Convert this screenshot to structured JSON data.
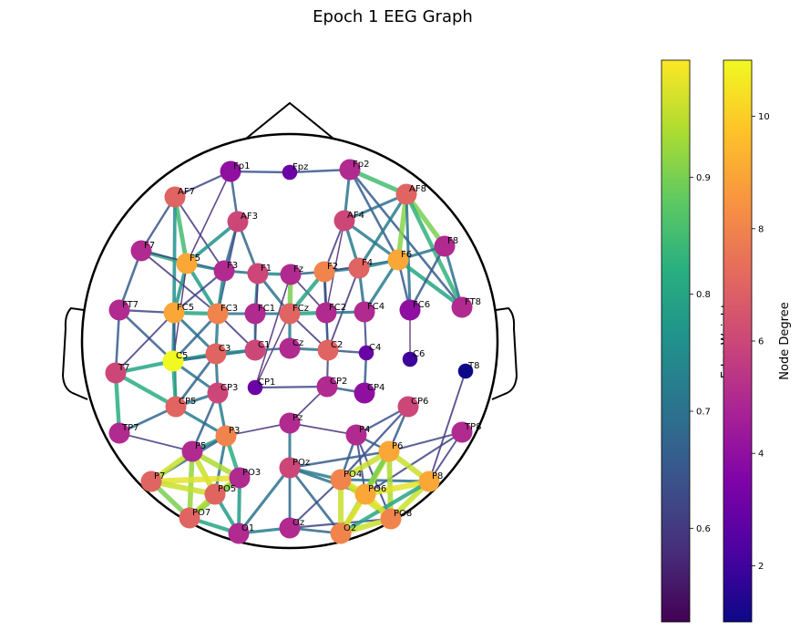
{
  "title": "Epoch 1 EEG Graph",
  "colorbars": {
    "edge": {
      "label": "Edge Weight",
      "colormap": "viridis",
      "range": [
        0.52,
        1.0
      ],
      "ticks": [
        "0.6",
        "0.7",
        "0.8",
        "0.9"
      ]
    },
    "node": {
      "label": "Node Degree",
      "colormap": "plasma",
      "range": [
        1,
        11
      ],
      "ticks": [
        "2",
        "4",
        "6",
        "8",
        "10"
      ]
    }
  },
  "nodes": [
    {
      "name": "Fp1",
      "degree": 4
    },
    {
      "name": "Fpz",
      "degree": 3
    },
    {
      "name": "Fp2",
      "degree": 5
    },
    {
      "name": "AF7",
      "degree": 7
    },
    {
      "name": "AF3",
      "degree": 6
    },
    {
      "name": "AF4",
      "degree": 6
    },
    {
      "name": "AF8",
      "degree": 7
    },
    {
      "name": "F7",
      "degree": 5
    },
    {
      "name": "F5",
      "degree": 9
    },
    {
      "name": "F3",
      "degree": 5
    },
    {
      "name": "F1",
      "degree": 6
    },
    {
      "name": "Fz",
      "degree": 5
    },
    {
      "name": "F2",
      "degree": 8
    },
    {
      "name": "F4",
      "degree": 7
    },
    {
      "name": "F6",
      "degree": 9
    },
    {
      "name": "F8",
      "degree": 5
    },
    {
      "name": "FT7",
      "degree": 5
    },
    {
      "name": "FC5",
      "degree": 9
    },
    {
      "name": "FC3",
      "degree": 8
    },
    {
      "name": "FC1",
      "degree": 5
    },
    {
      "name": "FCz",
      "degree": 7
    },
    {
      "name": "FC2",
      "degree": 5
    },
    {
      "name": "FC4",
      "degree": 5
    },
    {
      "name": "FC6",
      "degree": 4
    },
    {
      "name": "FT8",
      "degree": 5
    },
    {
      "name": "T7",
      "degree": 6
    },
    {
      "name": "C5",
      "degree": 11
    },
    {
      "name": "C3",
      "degree": 7
    },
    {
      "name": "C1",
      "degree": 6
    },
    {
      "name": "Cz",
      "degree": 5
    },
    {
      "name": "C2",
      "degree": 7
    },
    {
      "name": "C4",
      "degree": 3
    },
    {
      "name": "C6",
      "degree": 2
    },
    {
      "name": "T8",
      "degree": 1
    },
    {
      "name": "CP1",
      "degree": 3
    },
    {
      "name": "CP2",
      "degree": 5
    },
    {
      "name": "CP4",
      "degree": 4
    },
    {
      "name": "CP5",
      "degree": 7
    },
    {
      "name": "CP3",
      "degree": 6
    },
    {
      "name": "CP6",
      "degree": 6
    },
    {
      "name": "TP7",
      "degree": 5
    },
    {
      "name": "Pz",
      "degree": 5
    },
    {
      "name": "P4",
      "degree": 5
    },
    {
      "name": "TP8",
      "degree": 5
    },
    {
      "name": "P3",
      "degree": 8
    },
    {
      "name": "P6",
      "degree": 9
    },
    {
      "name": "P5",
      "degree": 5
    },
    {
      "name": "POz",
      "degree": 6
    },
    {
      "name": "PO3",
      "degree": 5
    },
    {
      "name": "PO4",
      "degree": 8
    },
    {
      "name": "P7",
      "degree": 7
    },
    {
      "name": "P8",
      "degree": 9
    },
    {
      "name": "PO5",
      "degree": 7
    },
    {
      "name": "PO6",
      "degree": 9
    },
    {
      "name": "PO7",
      "degree": 7
    },
    {
      "name": "PO8",
      "degree": 8
    },
    {
      "name": "Oz",
      "degree": 5
    },
    {
      "name": "O1",
      "degree": 5
    },
    {
      "name": "O2",
      "degree": 8
    }
  ],
  "edges": [
    [
      "Fp1",
      "Fpz",
      0.64
    ],
    [
      "Fpz",
      "Fp2",
      0.65
    ],
    [
      "Fp1",
      "AF7",
      0.62
    ],
    [
      "Fp1",
      "AF3",
      0.66
    ],
    [
      "Fp1",
      "F5",
      0.57
    ],
    [
      "Fp2",
      "AF4",
      0.7
    ],
    [
      "Fp2",
      "AF8",
      0.85
    ],
    [
      "Fp2",
      "F6",
      0.66
    ],
    [
      "Fp2",
      "FT8",
      0.66
    ],
    [
      "AF7",
      "F7",
      0.64
    ],
    [
      "AF7",
      "F5",
      0.85
    ],
    [
      "AF7",
      "FC5",
      0.76
    ],
    [
      "AF7",
      "F3",
      0.6
    ],
    [
      "AF3",
      "F5",
      0.76
    ],
    [
      "AF3",
      "F3",
      0.68
    ],
    [
      "AF3",
      "F1",
      0.68
    ],
    [
      "AF3",
      "FC3",
      0.63
    ],
    [
      "AF4",
      "F4",
      0.72
    ],
    [
      "AF4",
      "F6",
      0.72
    ],
    [
      "AF4",
      "AF8",
      0.7
    ],
    [
      "AF4",
      "FC2",
      0.56
    ],
    [
      "AF4",
      "F2",
      0.6
    ],
    [
      "AF8",
      "F6",
      0.91
    ],
    [
      "AF8",
      "F8",
      0.9
    ],
    [
      "AF8",
      "FT8",
      0.83
    ],
    [
      "AF8",
      "FC6",
      0.7
    ],
    [
      "AF8",
      "F4",
      0.72
    ],
    [
      "F7",
      "F5",
      0.82
    ],
    [
      "F7",
      "FT7",
      0.66
    ],
    [
      "F7",
      "FC3",
      0.6
    ],
    [
      "F7",
      "F3",
      0.6
    ],
    [
      "F5",
      "FC5",
      0.77
    ],
    [
      "F5",
      "FC3",
      0.78
    ],
    [
      "F5",
      "F3",
      0.72
    ],
    [
      "F5",
      "C5",
      0.56
    ],
    [
      "F3",
      "F1",
      0.7
    ],
    [
      "F3",
      "FC3",
      0.74
    ],
    [
      "F3",
      "FC5",
      0.62
    ],
    [
      "F1",
      "FC1",
      0.72
    ],
    [
      "F1",
      "Fz",
      0.74
    ],
    [
      "F1",
      "FCz",
      0.7
    ],
    [
      "F1",
      "C1",
      0.58
    ],
    [
      "Fz",
      "FCz",
      0.9
    ],
    [
      "Fz",
      "FC2",
      0.58
    ],
    [
      "Fz",
      "F2",
      0.68
    ],
    [
      "Fz",
      "CP1",
      0.57
    ],
    [
      "F2",
      "FCz",
      0.8
    ],
    [
      "F2",
      "F4",
      0.74
    ],
    [
      "F2",
      "FC2",
      0.7
    ],
    [
      "F2",
      "F6",
      0.6
    ],
    [
      "F2",
      "C2",
      0.62
    ],
    [
      "F4",
      "F6",
      0.74
    ],
    [
      "F4",
      "FC4",
      0.7
    ],
    [
      "F4",
      "C2",
      0.6
    ],
    [
      "F6",
      "F8",
      0.7
    ],
    [
      "F6",
      "FT8",
      0.8
    ],
    [
      "F6",
      "FC6",
      0.66
    ],
    [
      "F6",
      "FC4",
      0.72
    ],
    [
      "F8",
      "FT8",
      0.7
    ],
    [
      "F8",
      "FC6",
      0.66
    ],
    [
      "FT7",
      "FC5",
      0.62
    ],
    [
      "FT7",
      "T7",
      0.66
    ],
    [
      "FT7",
      "C5",
      0.66
    ],
    [
      "FC5",
      "FC3",
      0.8
    ],
    [
      "FC5",
      "C5",
      0.76
    ],
    [
      "FC5",
      "C3",
      0.7
    ],
    [
      "FC5",
      "CP5",
      0.64
    ],
    [
      "FC5",
      "T7",
      0.6
    ],
    [
      "FC3",
      "C3",
      0.72
    ],
    [
      "FC3",
      "FC1",
      0.7
    ],
    [
      "FC3",
      "C5",
      0.68
    ],
    [
      "FC3",
      "C1",
      0.6
    ],
    [
      "FC1",
      "FCz",
      0.7
    ],
    [
      "FC1",
      "C1",
      0.66
    ],
    [
      "FCz",
      "FC2",
      0.8
    ],
    [
      "FCz",
      "Cz",
      0.72
    ],
    [
      "FCz",
      "C2",
      0.6
    ],
    [
      "FCz",
      "CP1",
      0.56
    ],
    [
      "FC2",
      "FC4",
      0.7
    ],
    [
      "FC2",
      "C2",
      0.66
    ],
    [
      "FC4",
      "C4",
      0.62
    ],
    [
      "FC6",
      "C6",
      0.55
    ],
    [
      "T7",
      "C5",
      0.8
    ],
    [
      "T7",
      "CP5",
      0.82
    ],
    [
      "T7",
      "TP7",
      0.82
    ],
    [
      "C5",
      "C3",
      0.78
    ],
    [
      "C5",
      "CP5",
      0.8
    ],
    [
      "C5",
      "CP3",
      0.7
    ],
    [
      "C5",
      "C1",
      0.7
    ],
    [
      "C3",
      "C1",
      0.74
    ],
    [
      "C3",
      "CP3",
      0.7
    ],
    [
      "C3",
      "CP5",
      0.68
    ],
    [
      "C1",
      "Cz",
      0.66
    ],
    [
      "Cz",
      "C2",
      0.7
    ],
    [
      "C2",
      "C4",
      0.64
    ],
    [
      "C2",
      "CP2",
      0.62
    ],
    [
      "CP1",
      "CP2",
      0.62
    ],
    [
      "CP2",
      "CP4",
      0.66
    ],
    [
      "CP2",
      "Pz",
      0.58
    ],
    [
      "C4",
      "CP4",
      0.66
    ],
    [
      "CP5",
      "CP3",
      0.7
    ],
    [
      "CP5",
      "P3",
      0.72
    ],
    [
      "CP5",
      "TP7",
      0.68
    ],
    [
      "CP3",
      "P3",
      0.72
    ],
    [
      "CP3",
      "P5",
      0.66
    ],
    [
      "TP7",
      "P5",
      0.6
    ],
    [
      "P3",
      "Pz",
      0.58
    ],
    [
      "P3",
      "P5",
      0.76
    ],
    [
      "P3",
      "PO3",
      0.82
    ],
    [
      "P3",
      "P7",
      0.68
    ],
    [
      "P3",
      "PO5",
      0.7
    ],
    [
      "Pz",
      "P4",
      0.58
    ],
    [
      "Pz",
      "POz",
      0.7
    ],
    [
      "CP6",
      "P4",
      0.64
    ],
    [
      "CP6",
      "P6",
      0.66
    ],
    [
      "CP6",
      "PO4",
      0.64
    ],
    [
      "TP8",
      "P6",
      0.62
    ],
    [
      "TP8",
      "P8",
      0.6
    ],
    [
      "TP8",
      "PO6",
      0.62
    ],
    [
      "T8",
      "P8",
      0.6
    ],
    [
      "P4",
      "P6",
      0.66
    ],
    [
      "P4",
      "PO4",
      0.66
    ],
    [
      "P4",
      "PO6",
      0.62
    ],
    [
      "P4",
      "PO8",
      0.62
    ],
    [
      "P5",
      "P7",
      0.96
    ],
    [
      "P5",
      "PO5",
      0.96
    ],
    [
      "P5",
      "PO3",
      0.94
    ],
    [
      "P5",
      "PO7",
      0.92
    ],
    [
      "P7",
      "PO3",
      0.98
    ],
    [
      "P7",
      "PO5",
      0.96
    ],
    [
      "P7",
      "PO7",
      0.9
    ],
    [
      "PO3",
      "PO5",
      0.96
    ],
    [
      "PO3",
      "PO7",
      0.9
    ],
    [
      "PO3",
      "O1",
      0.78
    ],
    [
      "PO5",
      "PO7",
      0.94
    ],
    [
      "PO5",
      "O1",
      0.78
    ],
    [
      "PO7",
      "O1",
      0.8
    ],
    [
      "O1",
      "Oz",
      0.72
    ],
    [
      "O1",
      "POz",
      0.7
    ],
    [
      "POz",
      "PO4",
      0.72
    ],
    [
      "POz",
      "PO6",
      0.7
    ],
    [
      "POz",
      "O2",
      0.68
    ],
    [
      "POz",
      "Oz",
      0.68
    ],
    [
      "POz",
      "P6",
      0.66
    ],
    [
      "Oz",
      "O2",
      0.68
    ],
    [
      "Oz",
      "PO8",
      0.62
    ],
    [
      "Oz",
      "PO4",
      0.62
    ],
    [
      "PO4",
      "P6",
      0.96
    ],
    [
      "PO4",
      "PO6",
      0.98
    ],
    [
      "PO4",
      "O2",
      0.96
    ],
    [
      "PO4",
      "PO8",
      0.96
    ],
    [
      "PO4",
      "P8",
      0.7
    ],
    [
      "P6",
      "PO6",
      0.96
    ],
    [
      "P6",
      "P8",
      0.96
    ],
    [
      "P6",
      "PO8",
      0.94
    ],
    [
      "P6",
      "O2",
      0.9
    ],
    [
      "P8",
      "PO6",
      0.98
    ],
    [
      "P8",
      "PO8",
      0.96
    ],
    [
      "P8",
      "O2",
      0.8
    ],
    [
      "PO6",
      "O2",
      0.98
    ],
    [
      "PO6",
      "PO8",
      0.98
    ],
    [
      "PO8",
      "O2",
      0.96
    ]
  ]
}
